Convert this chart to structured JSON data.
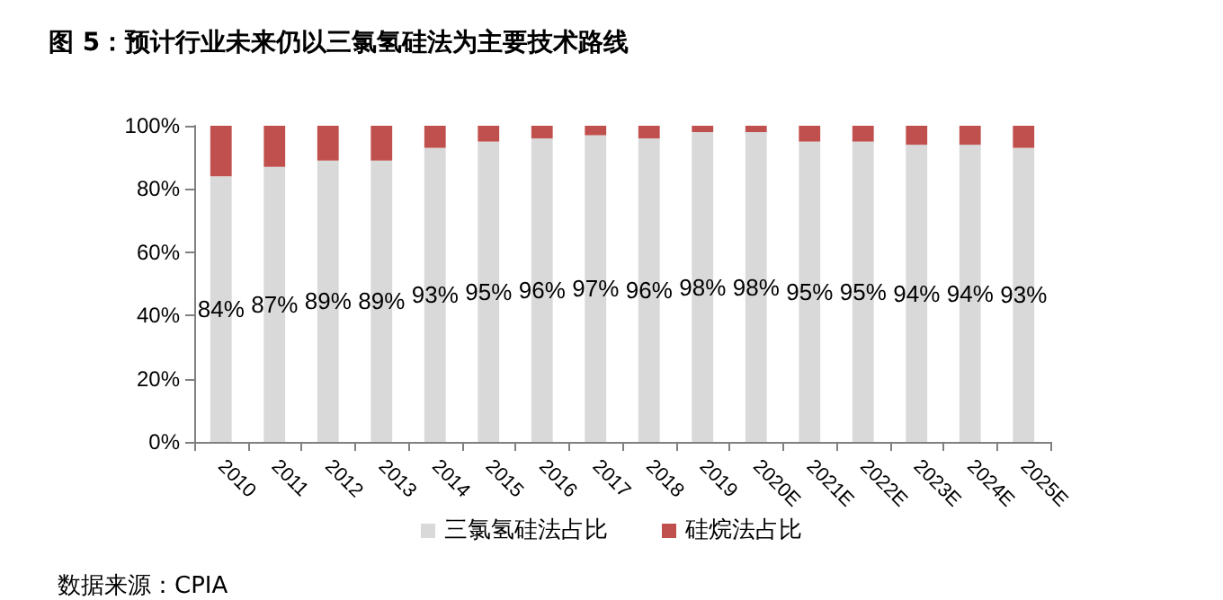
{
  "chart_data": {
    "type": "bar",
    "stacked": true,
    "title": "图 5：预计行业未来仍以三氯氢硅法为主要技术路线",
    "annotations": [
      "数据来源：CPIA"
    ],
    "categories": [
      "2010",
      "2011",
      "2012",
      "2013",
      "2014",
      "2015",
      "2016",
      "2017",
      "2018",
      "2019",
      "2020E",
      "2021E",
      "2022E",
      "2023E",
      "2024E",
      "2025E"
    ],
    "series": [
      {
        "name": "三氯氢硅法占比",
        "color": "#d9d9d9",
        "values": [
          84,
          87,
          89,
          89,
          93,
          95,
          96,
          97,
          96,
          98,
          98,
          95,
          95,
          94,
          94,
          93
        ],
        "value_labels": [
          "84%",
          "87%",
          "89%",
          "89%",
          "93%",
          "95%",
          "96%",
          "97%",
          "96%",
          "98%",
          "98%",
          "95%",
          "95%",
          "94%",
          "94%",
          "93%"
        ]
      },
      {
        "name": "硅烷法占比",
        "color": "#c0504d",
        "values": [
          16,
          13,
          11,
          11,
          7,
          5,
          4,
          3,
          4,
          2,
          2,
          5,
          5,
          6,
          6,
          7
        ]
      }
    ],
    "ylim": [
      0,
      100
    ],
    "yticks": [
      {
        "value": 0,
        "label": "0%"
      },
      {
        "value": 20,
        "label": "20%"
      },
      {
        "value": 40,
        "label": "40%"
      },
      {
        "value": 60,
        "label": "60%"
      },
      {
        "value": 80,
        "label": "80%"
      },
      {
        "value": 100,
        "label": "100%"
      }
    ],
    "grid": false,
    "legend": "bottom"
  }
}
